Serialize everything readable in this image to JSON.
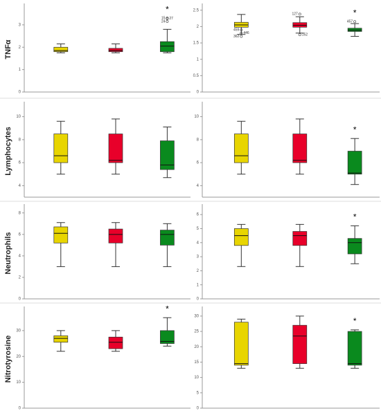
{
  "chart_data": [
    {
      "type": "box",
      "ylabel": "TNFα",
      "ylim": [
        0,
        3.8
      ],
      "yticks": [
        0,
        1,
        2,
        3
      ],
      "annotations": [
        {
          "text": "*",
          "box": 2
        }
      ],
      "boxes": [
        {
          "color": "#e8d500",
          "min": 1.75,
          "q1": 1.8,
          "median": 1.85,
          "q3": 2.0,
          "max": 2.15,
          "outliers": []
        },
        {
          "color": "#e8002a",
          "min": 1.75,
          "q1": 1.8,
          "median": 1.85,
          "q3": 1.95,
          "max": 2.15,
          "outliers": []
        },
        {
          "color": "#0a8a1e",
          "min": 1.75,
          "q1": 1.8,
          "median": 2.05,
          "q3": 2.25,
          "max": 2.8,
          "outliers": [
            {
              "value": 3.3,
              "label": "15"
            },
            {
              "value": 3.28,
              "label": "27"
            },
            {
              "value": 3.15,
              "label": "24"
            }
          ]
        }
      ]
    },
    {
      "type": "box",
      "ylim": [
        0,
        2.6
      ],
      "yticks": [
        0,
        0.5,
        1,
        1.5,
        2,
        2.5
      ],
      "annotations": [
        {
          "text": "*",
          "box": 2
        }
      ],
      "boxes": [
        {
          "color": "#e8d500",
          "min": 1.76,
          "q1": 1.98,
          "median": 2.05,
          "q3": 2.13,
          "max": 2.37,
          "outliers": [
            {
              "value": 1.9,
              "label": "459"
            },
            {
              "value": 1.8,
              "label": "446"
            },
            {
              "value": 1.7,
              "label": "362"
            }
          ]
        },
        {
          "color": "#e8002a",
          "min": 1.8,
          "q1": 1.98,
          "median": 2.04,
          "q3": 2.12,
          "max": 2.3,
          "outliers": [
            {
              "value": 2.38,
              "label": "127"
            },
            {
              "value": 1.75,
              "label": "152"
            }
          ]
        },
        {
          "color": "#0a8a1e",
          "min": 1.7,
          "q1": 1.85,
          "median": 1.89,
          "q3": 1.95,
          "max": 2.09,
          "outliers": [
            {
              "value": 2.15,
              "label": "457"
            }
          ]
        }
      ]
    },
    {
      "type": "box",
      "ylabel": "Lymphocytes",
      "ylim": [
        3,
        11
      ],
      "yticks": [
        4,
        6,
        8,
        10
      ],
      "annotations": [],
      "boxes": [
        {
          "color": "#e8d500",
          "min": 5,
          "q1": 6,
          "median": 6.6,
          "q3": 8.5,
          "max": 9.6,
          "outliers": []
        },
        {
          "color": "#e8002a",
          "min": 5,
          "q1": 6,
          "median": 6.2,
          "q3": 8.5,
          "max": 9.8,
          "outliers": []
        },
        {
          "color": "#0a8a1e",
          "min": 4.7,
          "q1": 5.4,
          "median": 5.8,
          "q3": 7.9,
          "max": 9.1,
          "outliers": []
        }
      ]
    },
    {
      "type": "box",
      "ylim": [
        3,
        11
      ],
      "yticks": [
        4,
        6,
        8,
        10
      ],
      "annotations": [
        {
          "text": "*",
          "box": 2
        }
      ],
      "boxes": [
        {
          "color": "#e8d500",
          "min": 5,
          "q1": 6,
          "median": 6.6,
          "q3": 8.5,
          "max": 9.6,
          "outliers": []
        },
        {
          "color": "#e8002a",
          "min": 5,
          "q1": 6,
          "median": 6.2,
          "q3": 8.5,
          "max": 9.8,
          "outliers": []
        },
        {
          "color": "#0a8a1e",
          "min": 4.1,
          "q1": 5,
          "median": 5.1,
          "q3": 7,
          "max": 8.1,
          "outliers": []
        }
      ]
    },
    {
      "type": "box",
      "ylabel": "Neutrophils",
      "ylim": [
        0,
        8.5
      ],
      "yticks": [
        0,
        2,
        4,
        6,
        8
      ],
      "annotations": [],
      "boxes": [
        {
          "color": "#e8d500",
          "min": 3,
          "q1": 5.2,
          "median": 6.1,
          "q3": 6.7,
          "max": 7.1,
          "outliers": []
        },
        {
          "color": "#e8002a",
          "min": 3,
          "q1": 5.2,
          "median": 6.0,
          "q3": 6.5,
          "max": 7.1,
          "outliers": []
        },
        {
          "color": "#0a8a1e",
          "min": 3,
          "q1": 5.0,
          "median": 6.0,
          "q3": 6.4,
          "max": 7.0,
          "outliers": []
        }
      ]
    },
    {
      "type": "box",
      "ylim": [
        0,
        6.5
      ],
      "yticks": [
        0,
        1,
        2,
        3,
        4,
        5,
        6
      ],
      "annotations": [
        {
          "text": "*",
          "box": 2
        }
      ],
      "boxes": [
        {
          "color": "#e8d500",
          "min": 2.3,
          "q1": 3.8,
          "median": 4.5,
          "q3": 5.0,
          "max": 5.3,
          "outliers": []
        },
        {
          "color": "#e8002a",
          "min": 2.3,
          "q1": 3.8,
          "median": 4.5,
          "q3": 4.8,
          "max": 5.3,
          "outliers": []
        },
        {
          "color": "#0a8a1e",
          "min": 2.5,
          "q1": 3.2,
          "median": 4.0,
          "q3": 4.3,
          "max": 5.2,
          "outliers": []
        }
      ]
    },
    {
      "type": "box",
      "ylabel": "Nitrotyrosine",
      "ylim": [
        0,
        38
      ],
      "yticks": [
        0,
        10,
        20,
        30
      ],
      "annotations": [
        {
          "text": "*",
          "box": 2
        }
      ],
      "boxes": [
        {
          "color": "#e8d500",
          "min": 22,
          "q1": 25.5,
          "median": 27,
          "q3": 28,
          "max": 30,
          "outliers": []
        },
        {
          "color": "#e8002a",
          "min": 22,
          "q1": 23,
          "median": 25.5,
          "q3": 27.5,
          "max": 30,
          "outliers": []
        },
        {
          "color": "#0a8a1e",
          "min": 24,
          "q1": 25,
          "median": 25.8,
          "q3": 30,
          "max": 35,
          "outliers": []
        }
      ]
    },
    {
      "type": "box",
      "ylim": [
        0,
        32
      ],
      "yticks": [
        0,
        5,
        10,
        15,
        20,
        25,
        30
      ],
      "annotations": [
        {
          "text": "*",
          "box": 2
        }
      ],
      "boxes": [
        {
          "color": "#e8d500",
          "min": 13,
          "q1": 14,
          "median": 14.5,
          "q3": 28,
          "max": 29,
          "outliers": []
        },
        {
          "color": "#e8002a",
          "min": 13,
          "q1": 14.5,
          "median": 23.5,
          "q3": 27,
          "max": 30,
          "outliers": []
        },
        {
          "color": "#0a8a1e",
          "min": 13,
          "q1": 14,
          "median": 14.5,
          "q3": 25,
          "max": 25.5,
          "outliers": []
        }
      ]
    }
  ]
}
